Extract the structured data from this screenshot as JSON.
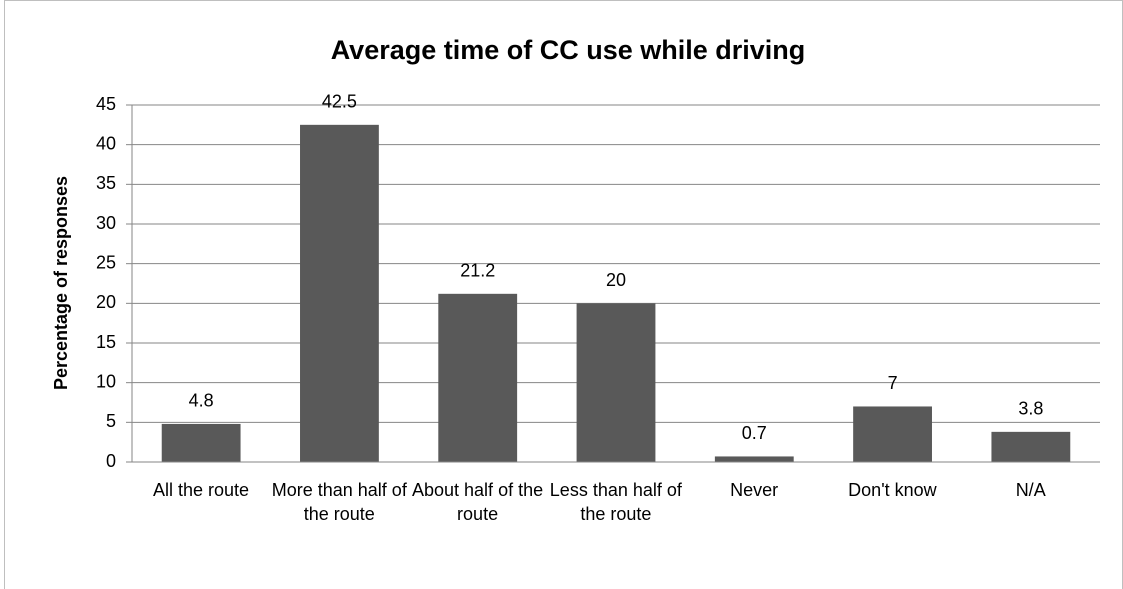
{
  "chart_data": {
    "type": "bar",
    "title": "Average time of CC use while driving",
    "y_label": "Percentage of responses",
    "categories": [
      "All the route",
      "More than half of the route",
      "About half of the route",
      "Less than half of the route",
      "Never",
      "Don't know",
      "N/A"
    ],
    "values": [
      4.8,
      42.5,
      21.2,
      20,
      0.7,
      7,
      3.8
    ],
    "color": "#595959",
    "ylim": [
      0,
      45
    ],
    "yticks": [
      0,
      5,
      10,
      15,
      20,
      25,
      30,
      35,
      40,
      45
    ],
    "grid": true
  }
}
